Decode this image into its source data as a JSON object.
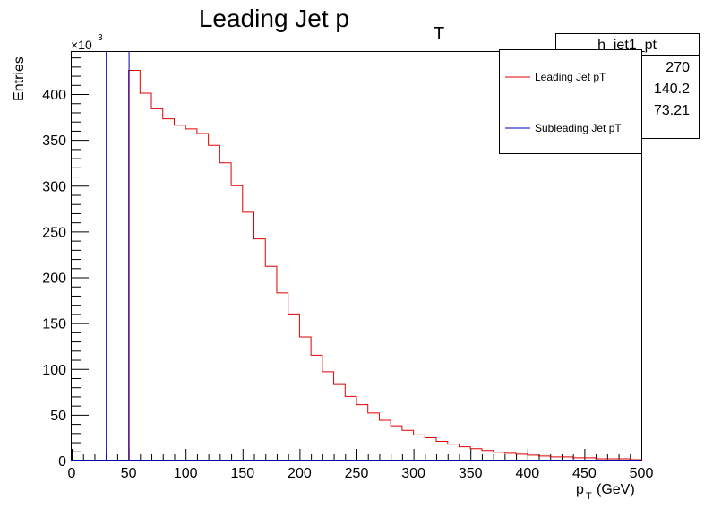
{
  "chart_data": {
    "type": "histogram",
    "title_main": "Leading Jet p",
    "title_sub": "T",
    "xlabel_main": "p",
    "xlabel_sub": "T",
    "xlabel_unit": "(GeV)",
    "ylabel": "Entries",
    "y_multiplier_base": "×10",
    "y_multiplier_exp": "3",
    "xlim": [
      0,
      500
    ],
    "ylim": [
      0,
      446
    ],
    "x_ticks": [
      0,
      50,
      100,
      150,
      200,
      250,
      300,
      350,
      400,
      450,
      500
    ],
    "y_ticks": [
      0,
      50,
      100,
      150,
      200,
      250,
      300,
      350,
      400
    ],
    "bin_width": 10,
    "series": [
      {
        "name": "Leading Jet pT",
        "color": "#e00000",
        "bin_edges_start": 50,
        "values": [
          426,
          401,
          384,
          373,
          366,
          362,
          357,
          344,
          325,
          300,
          271,
          242,
          212,
          183,
          160,
          135,
          115,
          97,
          83,
          70,
          61,
          52,
          44,
          38,
          33,
          28,
          25,
          21,
          18,
          15,
          13,
          11,
          9,
          8,
          7,
          6,
          5,
          4,
          4,
          3,
          3,
          2,
          2,
          2,
          1
        ]
      },
      {
        "name": "Subleading Jet pT",
        "color": "#0000b0",
        "spikes": [
          [
            30,
            446
          ],
          [
            50,
            446
          ]
        ],
        "baseline_bin_value": 0
      }
    ],
    "legend_placement": "top-right",
    "stats_box": {
      "title": "h_jet1_pt",
      "values": [
        "270",
        "140.2",
        "73.21"
      ]
    }
  }
}
